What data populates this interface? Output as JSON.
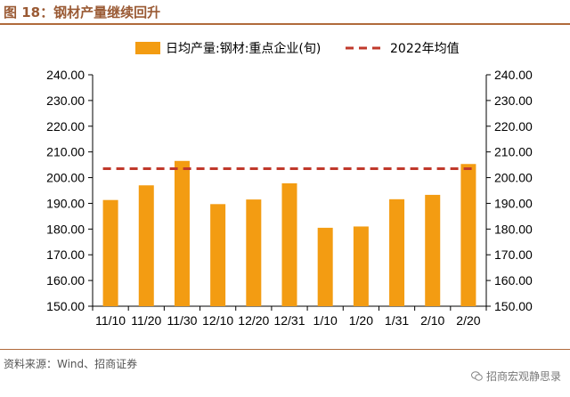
{
  "header": {
    "figure_title": "图 18：钢材产量继续回升"
  },
  "footer": {
    "source": "资料来源：Wind、招商证券",
    "watermark": "招商宏观静思录"
  },
  "colors": {
    "bar": "#F39C12",
    "reference": "#C0392B",
    "axis": "#000000",
    "header": "#9a5a34"
  },
  "chart_data": {
    "type": "bar",
    "categories": [
      "11/10",
      "11/20",
      "11/30",
      "12/10",
      "12/20",
      "12/31",
      "1/10",
      "1/20",
      "1/31",
      "2/10",
      "2/20"
    ],
    "series": [
      {
        "name": "日均产量:钢材:重点企业(旬)",
        "values": [
          191.3,
          197.0,
          206.5,
          189.7,
          191.5,
          197.8,
          180.5,
          181.0,
          191.6,
          193.3,
          205.3
        ]
      }
    ],
    "reference_line": {
      "name": "2022年均值",
      "value": 203.5,
      "style": "dashed"
    },
    "ylim": [
      150,
      240
    ],
    "yticks": [
      "150.00",
      "160.00",
      "170.00",
      "180.00",
      "190.00",
      "200.00",
      "210.00",
      "220.00",
      "230.00",
      "240.00"
    ],
    "dual_y_axis": true,
    "legend_position": "top",
    "grid": false
  }
}
